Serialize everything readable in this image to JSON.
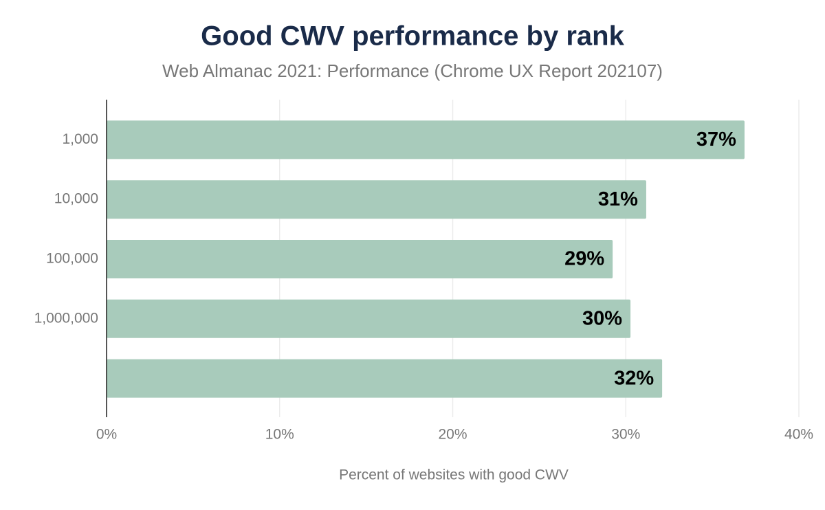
{
  "chart_data": {
    "type": "bar",
    "orientation": "horizontal",
    "title": "Good CWV performance by rank",
    "subtitle": "Web Almanac 2021: Performance (Chrome UX Report 202107)",
    "x_label": "Percent of websites with good CWV",
    "categories": [
      "1,000",
      "10,000",
      "100,000",
      "1,000,000",
      null
    ],
    "values": [
      36.86,
      31.18,
      29.24,
      30.27,
      32.1
    ],
    "value_labels": [
      "37%",
      "31%",
      "29%",
      "30%",
      "32%"
    ],
    "color": "#a8cbbb",
    "xlim": [
      0,
      40
    ],
    "xticks": [
      {
        "value": 0,
        "label": "0%"
      },
      {
        "value": 10,
        "label": "10%"
      },
      {
        "value": 20,
        "label": "20%"
      },
      {
        "value": 30,
        "label": "30%"
      },
      {
        "value": 40,
        "label": "40%"
      }
    ],
    "grid": true
  }
}
